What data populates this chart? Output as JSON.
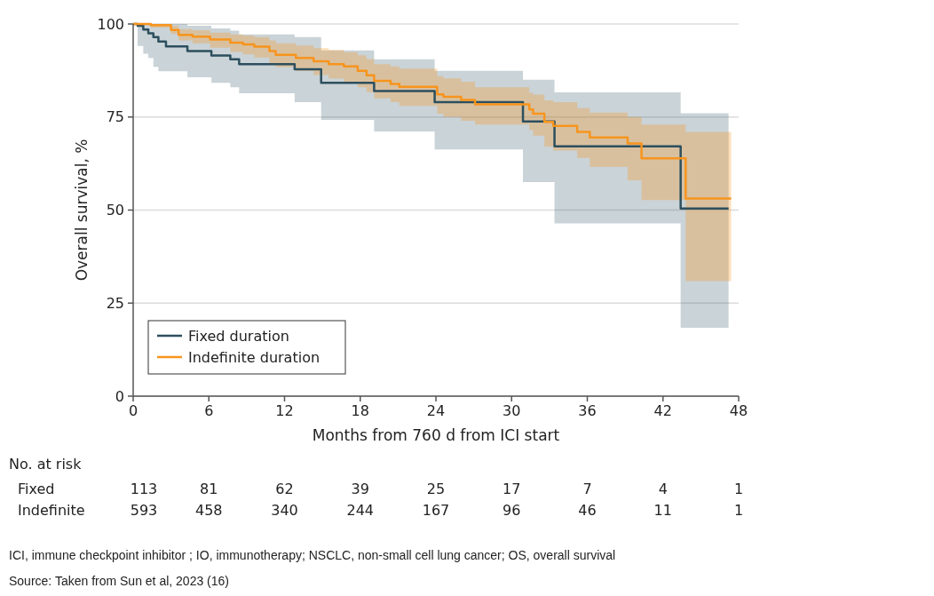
{
  "chart_data": {
    "type": "step",
    "xlabel": "Months from 760 d from ICI start",
    "ylabel": "Overall survival, %",
    "xlim": [
      0,
      48
    ],
    "xticks": [
      0,
      6,
      12,
      18,
      24,
      30,
      36,
      42,
      48
    ],
    "ylim": [
      0,
      100
    ],
    "yticks": [
      0,
      25,
      50,
      75,
      100
    ],
    "grid": "y",
    "legend": "bottom left",
    "series": [
      {
        "name": "Fixed duration",
        "color": "#2c4f5e",
        "x": [
          0,
          0.35,
          0.8,
          1.2,
          1.6,
          2.0,
          2.6,
          4.3,
          6.2,
          7.7,
          8.4,
          12.8,
          14.9,
          19.1,
          23.9,
          30.9,
          33.4,
          43.4,
          47.2
        ],
        "values": [
          100,
          99.5,
          98.5,
          97.5,
          96.5,
          95.3,
          94.0,
          92.7,
          91.5,
          90.5,
          89.2,
          87.8,
          84.2,
          82.0,
          79.0,
          73.8,
          67.1,
          50.4,
          50.4
        ],
        "lower": [
          100,
          94.1,
          92,
          90.9,
          88.5,
          87.3,
          87.3,
          85.7,
          84.2,
          83,
          81.4,
          79.0,
          74.2,
          71.1,
          66.3,
          57.5,
          46.4,
          18.4,
          18.4
        ],
        "upper": [
          100,
          100,
          100,
          100,
          100,
          100,
          100,
          99.5,
          98.8,
          98.2,
          97.2,
          96.5,
          92.9,
          90.5,
          87.4,
          85.0,
          81.6,
          76.0,
          76.0
        ]
      },
      {
        "name": "Indefinite duration",
        "color": "#f7941d",
        "x": [
          0,
          1.4,
          3.0,
          3.6,
          4.7,
          6.1,
          7.7,
          8.7,
          9.6,
          10.8,
          11.3,
          12.9,
          14.3,
          15.5,
          16.7,
          17.8,
          18.5,
          19.1,
          20.4,
          21.1,
          24.1,
          24.6,
          26.0,
          27.1,
          31.4,
          31.7,
          32.6,
          33.3,
          35.2,
          36.2,
          39.2,
          40.3,
          43.8,
          47.4
        ],
        "values": [
          100,
          99.7,
          98.4,
          97.1,
          96.6,
          95.8,
          95.0,
          94.5,
          93.9,
          92.7,
          91.7,
          90.9,
          90.0,
          89.2,
          88.6,
          87.4,
          86.2,
          84.7,
          83.9,
          83.1,
          81.1,
          80.4,
          79.6,
          78.4,
          77.0,
          75.9,
          73.7,
          72.6,
          71.0,
          69.5,
          67.9,
          63.9,
          53.1,
          53.1
        ],
        "lower": [
          100,
          99,
          97.3,
          95.6,
          94.8,
          93.6,
          92.5,
          91.8,
          91,
          89.5,
          88.4,
          87.4,
          86.3,
          85.3,
          84.5,
          83,
          81.7,
          80,
          79,
          78,
          75.9,
          75,
          74,
          73,
          71.5,
          70,
          67,
          66,
          64,
          61.6,
          58,
          52.7,
          30.9,
          30.9
        ],
        "upper": [
          100,
          100,
          99.5,
          98.6,
          98.3,
          97.7,
          97.2,
          96.9,
          96.5,
          95.6,
          94.8,
          94.2,
          93.5,
          93,
          92.4,
          91.6,
          90.6,
          89.2,
          88.6,
          88,
          86,
          85.4,
          84.5,
          83,
          81.5,
          81,
          79.5,
          79,
          77.4,
          76.2,
          75,
          73,
          71,
          71
        ]
      }
    ],
    "annotations": [
      "No. at risk",
      "Fixed",
      "113",
      "81",
      "62",
      "39",
      "25",
      "17",
      "7",
      "4",
      "1",
      "Indefinite",
      "593",
      "458",
      "340",
      "244",
      "167",
      "96",
      "46",
      "11",
      "1",
      "ICI, immune checkpoint inhibitor ; IO, immunotherapy; NSCLC, non-small cell lung cancer; OS, overall survival",
      "Source: Taken from Sun et al, 2023 (16)"
    ]
  }
}
